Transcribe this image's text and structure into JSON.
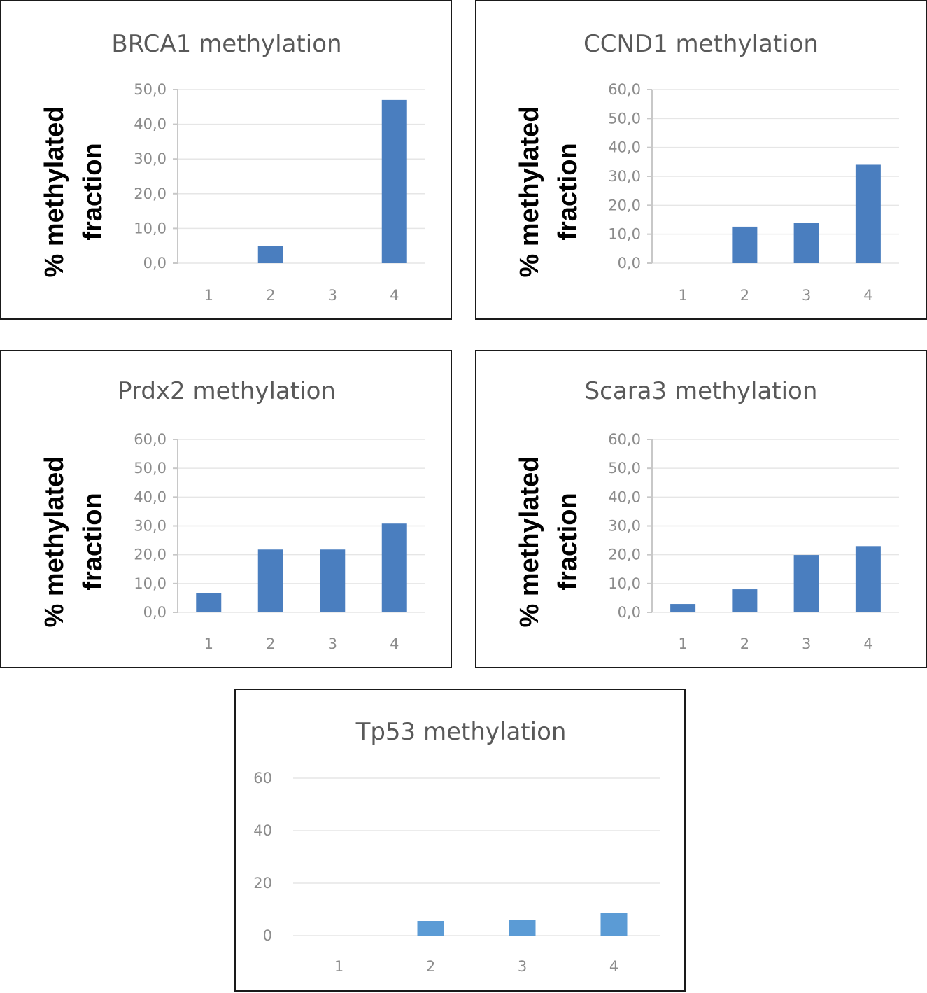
{
  "chart_data": [
    {
      "type": "bar",
      "title": "BRCA1 methylation",
      "xlabel": "",
      "ylabel": [
        "% methylated",
        "fraction"
      ],
      "categories": [
        "1",
        "2",
        "3",
        "4"
      ],
      "values": [
        0,
        5.0,
        0,
        47.0
      ],
      "ylim": [
        0,
        50
      ],
      "yticks": [
        "0,0",
        "10,0",
        "20,0",
        "30,0",
        "40,0",
        "50,0"
      ],
      "ytick_values": [
        0,
        10,
        20,
        30,
        40,
        50
      ],
      "grid": true,
      "color": "#4a7ebf"
    },
    {
      "type": "bar",
      "title": "CCND1 methylation",
      "xlabel": "",
      "ylabel": [
        "% methylated",
        "fraction"
      ],
      "categories": [
        "1",
        "2",
        "3",
        "4"
      ],
      "values": [
        0,
        12.6,
        13.8,
        34.0
      ],
      "ylim": [
        0,
        60
      ],
      "yticks": [
        "0,0",
        "10,0",
        "20,0",
        "30,0",
        "40,0",
        "50,0",
        "60,0"
      ],
      "ytick_values": [
        0,
        10,
        20,
        30,
        40,
        50,
        60
      ],
      "grid": true,
      "color": "#4a7ebf"
    },
    {
      "type": "bar",
      "title": "Prdx2 methylation",
      "xlabel": "",
      "ylabel": [
        "% methylated",
        "fraction"
      ],
      "categories": [
        "1",
        "2",
        "3",
        "4"
      ],
      "values": [
        6.8,
        21.8,
        21.8,
        30.8
      ],
      "ylim": [
        0,
        60
      ],
      "yticks": [
        "0,0",
        "10,0",
        "20,0",
        "30,0",
        "40,0",
        "50,0",
        "60,0"
      ],
      "ytick_values": [
        0,
        10,
        20,
        30,
        40,
        50,
        60
      ],
      "grid": true,
      "color": "#4a7ebf"
    },
    {
      "type": "bar",
      "title": "Scara3 methylation",
      "xlabel": "",
      "ylabel": [
        "% methylated",
        "fraction"
      ],
      "categories": [
        "1",
        "2",
        "3",
        "4"
      ],
      "values": [
        2.9,
        8.0,
        19.9,
        23.0
      ],
      "ylim": [
        0,
        60
      ],
      "yticks": [
        "0,0",
        "10,0",
        "20,0",
        "30,0",
        "40,0",
        "50,0",
        "60,0"
      ],
      "ytick_values": [
        0,
        10,
        20,
        30,
        40,
        50,
        60
      ],
      "grid": true,
      "color": "#4a7ebf"
    },
    {
      "type": "bar",
      "title": "Tp53 methylation",
      "xlabel": "",
      "ylabel": null,
      "categories": [
        "1",
        "2",
        "3",
        "4"
      ],
      "values": [
        0,
        5.6,
        6.1,
        8.8
      ],
      "ylim": [
        0,
        60
      ],
      "yticks": [
        "0",
        "20",
        "40",
        "60"
      ],
      "ytick_values": [
        0,
        20,
        40,
        60
      ],
      "grid": true,
      "color": "#5b9bd5"
    }
  ]
}
